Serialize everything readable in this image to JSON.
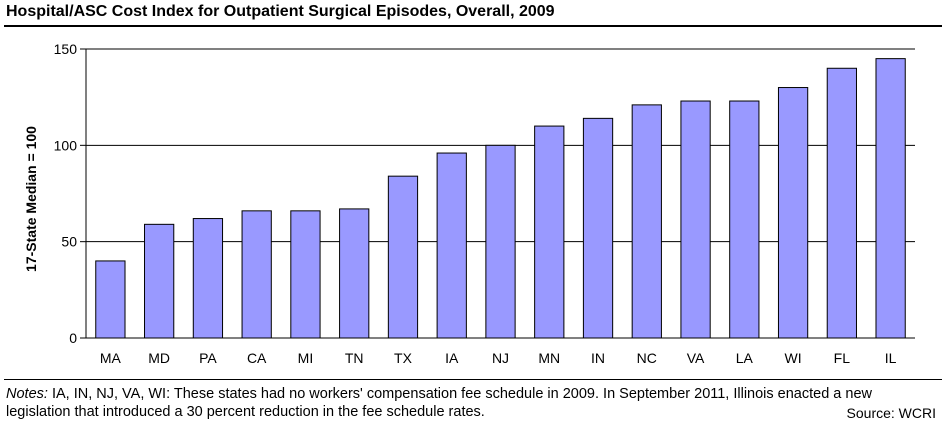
{
  "title": "Hospital/ASC Cost Index for Outpatient Surgical Episodes, Overall, 2009",
  "notes_label": "Notes:",
  "notes_text": "IA, IN, NJ, VA, WI: These states had no workers' compensation fee schedule in 2009. In September 2011, Illinois enacted a new legislation that introduced a 30 percent reduction in the fee schedule rates.",
  "source": "Source: WCRI",
  "colors": {
    "bar_fill": "#9999ff",
    "bar_stroke": "#000000",
    "grid": "#000000"
  },
  "chart_data": {
    "type": "bar",
    "title": "Hospital/ASC Cost Index for Outpatient Surgical Episodes, Overall, 2009",
    "xlabel": "",
    "ylabel": "17-State Median = 100",
    "ylim": [
      0,
      150
    ],
    "yticks": [
      0,
      50,
      100,
      150
    ],
    "grid": true,
    "categories": [
      "MA",
      "MD",
      "PA",
      "CA",
      "MI",
      "TN",
      "TX",
      "IA",
      "NJ",
      "MN",
      "IN",
      "NC",
      "VA",
      "LA",
      "WI",
      "FL",
      "IL"
    ],
    "values": [
      40,
      59,
      62,
      66,
      66,
      67,
      84,
      96,
      100,
      110,
      114,
      121,
      123,
      123,
      130,
      140,
      145
    ]
  }
}
